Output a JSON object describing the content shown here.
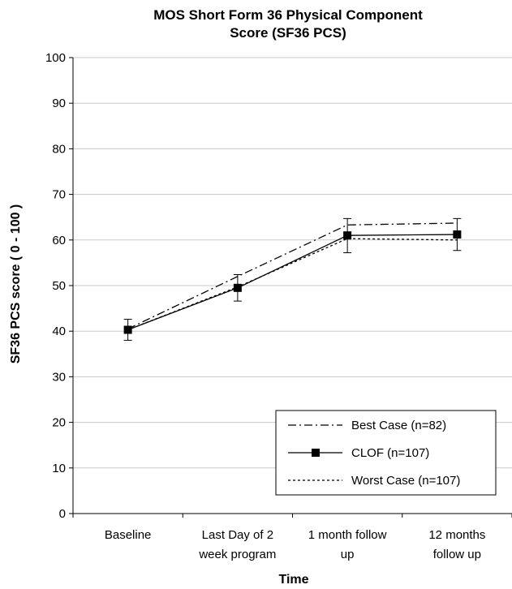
{
  "chart_data": {
    "type": "line",
    "title": [
      "MOS Short Form 36 Physical Component",
      "Score (SF36 PCS)"
    ],
    "xlabel": "Time",
    "ylabel": "SF36 PCS score ( 0 - 100 )",
    "ylim": [
      0,
      100
    ],
    "yticks": [
      0,
      10,
      20,
      30,
      40,
      50,
      60,
      70,
      80,
      90,
      100
    ],
    "categories": [
      [
        "Baseline"
      ],
      [
        "Last Day of 2",
        "week program"
      ],
      [
        "1 month follow",
        "up"
      ],
      [
        "12 months",
        "follow up"
      ]
    ],
    "grid": true,
    "legend_position": "bottom-right",
    "series": [
      {
        "name": "Best Case (n=82)",
        "values": [
          40.5,
          52,
          63.3,
          63.7
        ],
        "style": "dash-dot",
        "marker": "none",
        "color": "#000000"
      },
      {
        "name": "CLOF (n=107)",
        "values": [
          40.3,
          49.5,
          61,
          61.2
        ],
        "style": "solid",
        "marker": "square",
        "color": "#000000",
        "error": [
          [
            38,
            42.6
          ],
          [
            46.6,
            52.4
          ],
          [
            57.2,
            64.7
          ],
          [
            57.7,
            64.7
          ]
        ]
      },
      {
        "name": "Worst Case (n=107)",
        "values": [
          40.3,
          49.7,
          60.3,
          60
        ],
        "style": "dotted",
        "marker": "none",
        "color": "#000000"
      }
    ]
  }
}
